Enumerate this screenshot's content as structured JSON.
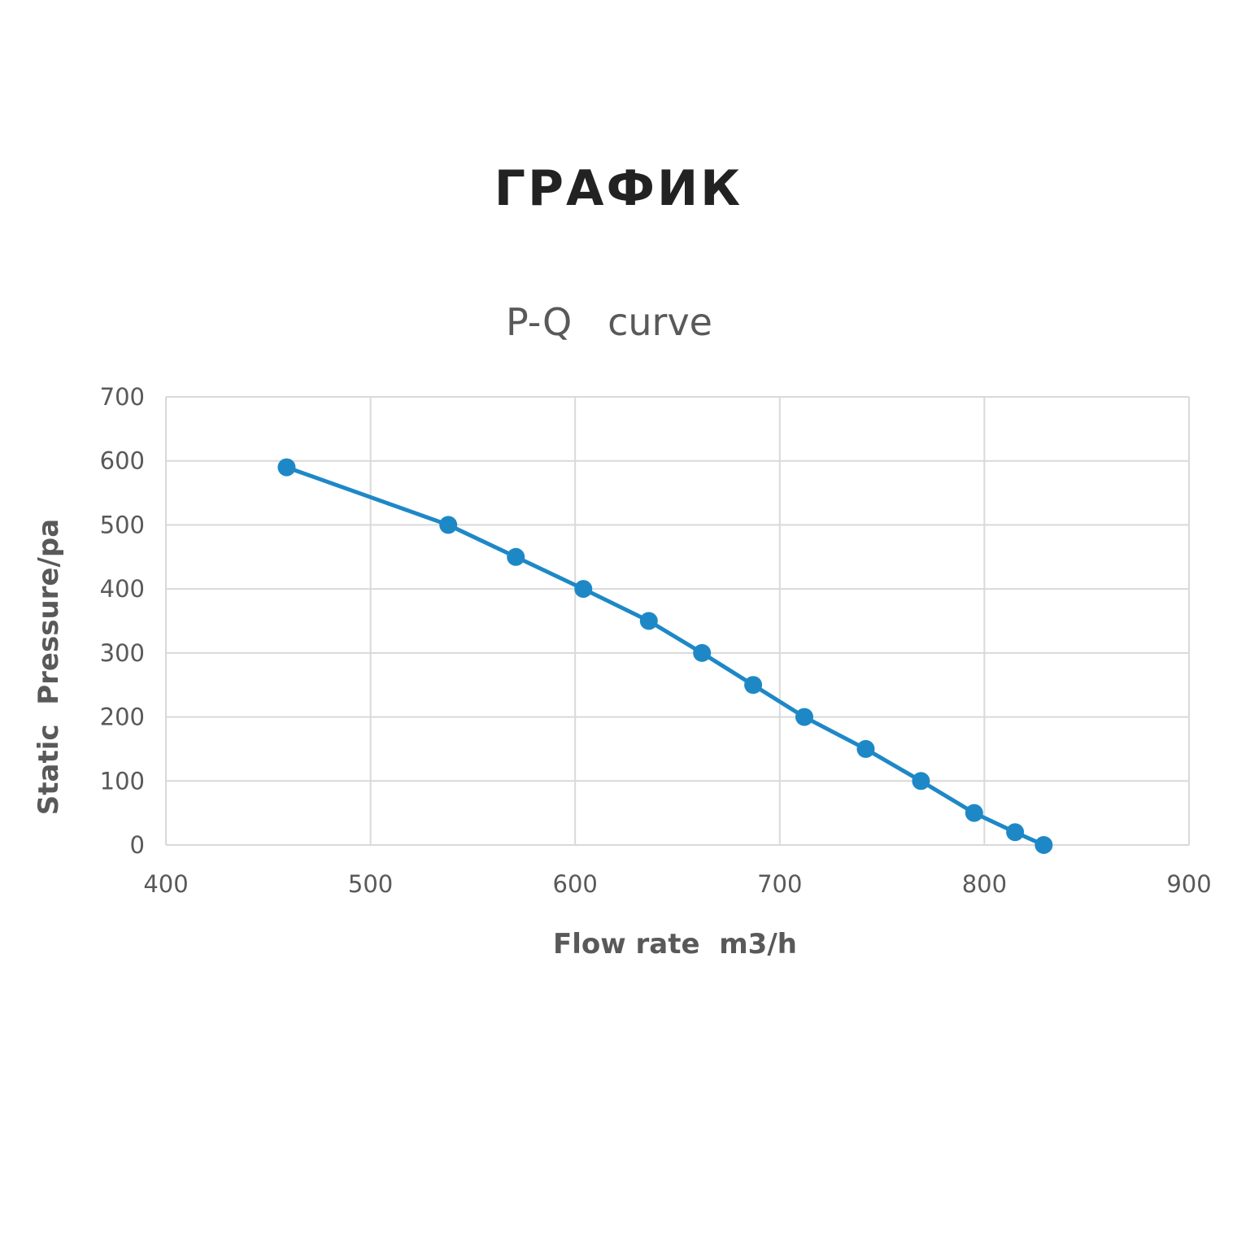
{
  "page": {
    "heading": "ГРАФИК"
  },
  "chart_data": {
    "type": "line",
    "title": "P-Q   curve",
    "xlabel": "Flow rate  m3/h",
    "ylabel": "Static  Pressure/pa",
    "xlim": [
      400,
      900
    ],
    "ylim": [
      0,
      700
    ],
    "x_ticks": [
      400,
      500,
      600,
      700,
      800,
      900
    ],
    "y_ticks": [
      0,
      100,
      200,
      300,
      400,
      500,
      600,
      700
    ],
    "grid": true,
    "legend": "none",
    "series": [
      {
        "color": "#1e88c7",
        "marker": "circle",
        "points": [
          {
            "x": 459,
            "y": 590
          },
          {
            "x": 538,
            "y": 500
          },
          {
            "x": 571,
            "y": 450
          },
          {
            "x": 604,
            "y": 400
          },
          {
            "x": 636,
            "y": 350
          },
          {
            "x": 662,
            "y": 300
          },
          {
            "x": 687,
            "y": 250
          },
          {
            "x": 712,
            "y": 200
          },
          {
            "x": 742,
            "y": 150
          },
          {
            "x": 769,
            "y": 100
          },
          {
            "x": 795,
            "y": 50
          },
          {
            "x": 815,
            "y": 20
          },
          {
            "x": 829,
            "y": 0
          }
        ]
      }
    ]
  }
}
